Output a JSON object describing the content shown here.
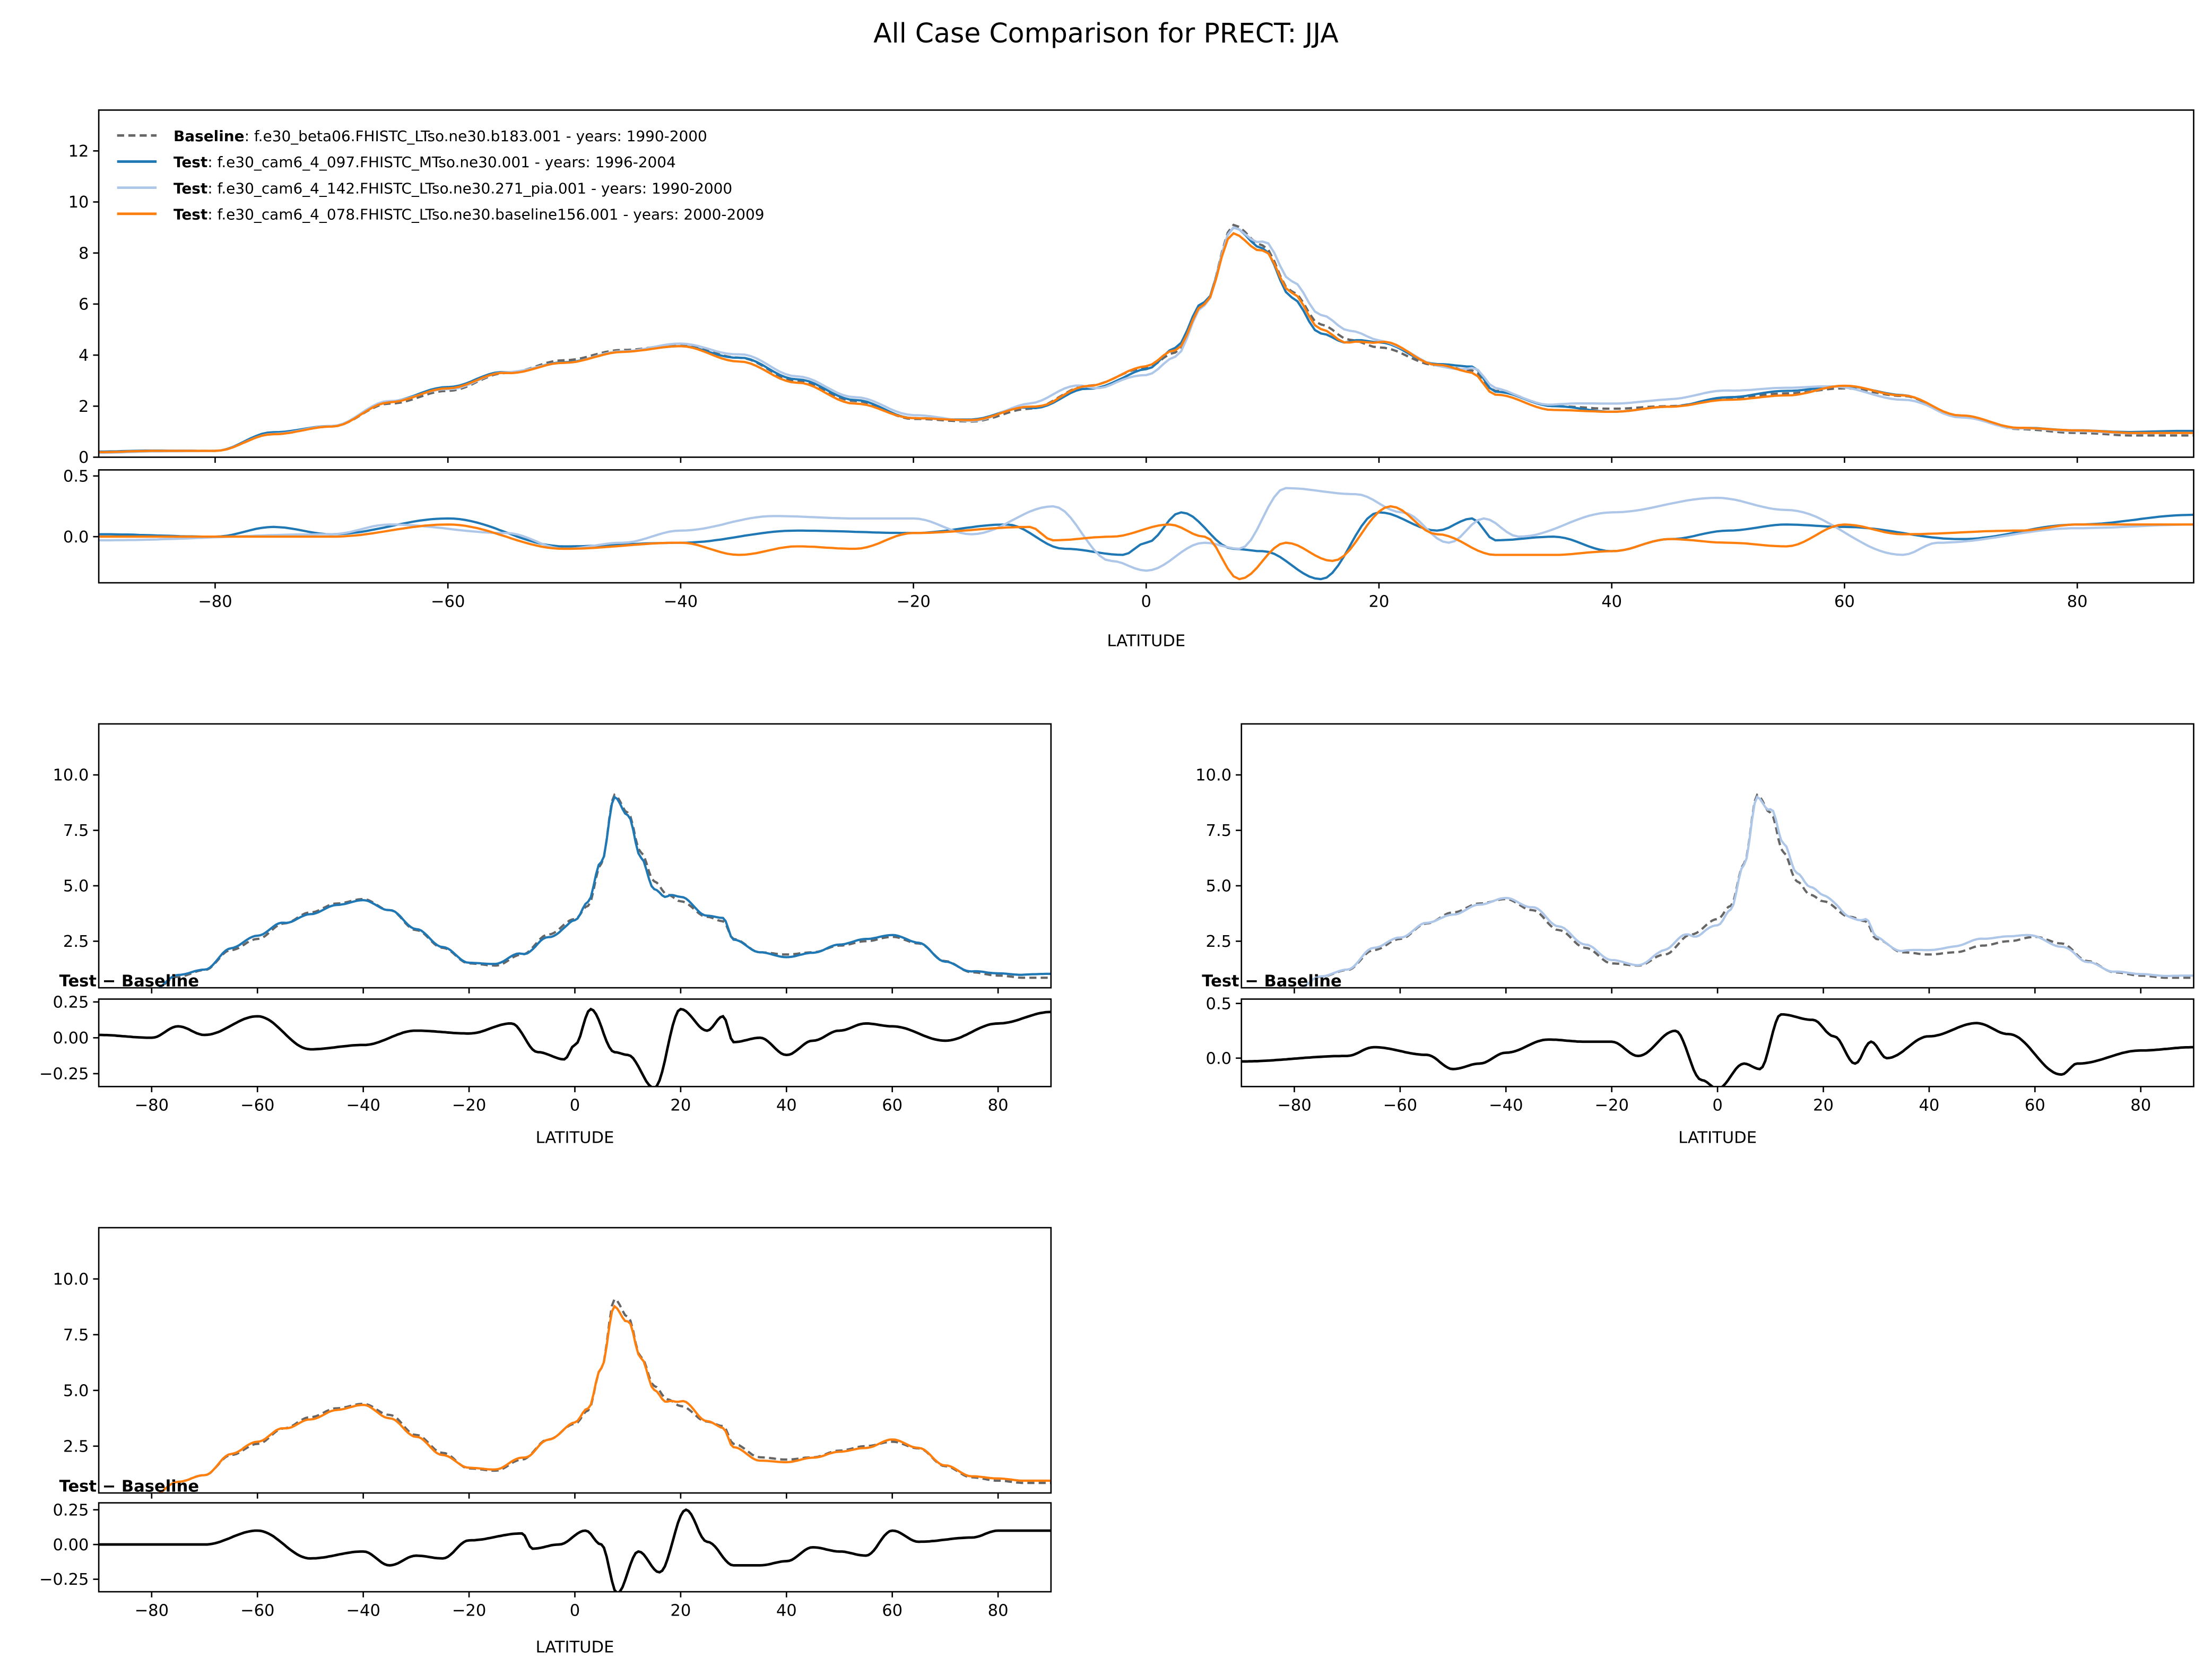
{
  "chart_data": {
    "type": "line",
    "title": "All Case Comparison for PRECT: JJA",
    "xlabel": "LATITUDE",
    "xlim": [
      -90,
      90
    ],
    "xticks": [
      -80,
      -60,
      -40,
      -20,
      0,
      20,
      40,
      60,
      80
    ],
    "diff_label": "Test − Baseline",
    "baseline": {
      "label_bold": "Baseline",
      "label": ": f.e30_beta06.FHISTC_LTso.ne30.b183.001 - years: 1990-2000",
      "color": "#666666",
      "lat": [
        -90,
        -85,
        -80,
        -75,
        -70,
        -65,
        -60,
        -55,
        -50,
        -45,
        -40,
        -35,
        -30,
        -25,
        -20,
        -15,
        -10,
        -5,
        0,
        2.5,
        5,
        7.5,
        10,
        12.5,
        15,
        17.5,
        20,
        25,
        28,
        30,
        35,
        40,
        45,
        50,
        55,
        60,
        65,
        70,
        75,
        80,
        85,
        90
      ],
      "values": [
        0.2,
        0.25,
        0.25,
        0.9,
        1.2,
        2.1,
        2.6,
        3.3,
        3.8,
        4.2,
        4.4,
        3.9,
        3.0,
        2.2,
        1.5,
        1.4,
        1.9,
        2.8,
        3.5,
        4.1,
        6.0,
        9.1,
        8.3,
        6.5,
        5.2,
        4.6,
        4.3,
        3.6,
        3.4,
        2.6,
        2.0,
        1.9,
        2.0,
        2.3,
        2.5,
        2.7,
        2.4,
        1.6,
        1.1,
        0.95,
        0.85,
        0.85
      ]
    },
    "series": [
      {
        "label_bold": "Test",
        "label": ": f.e30_cam6_4_097.FHISTC_MTso.ne30.001 - years: 1996-2004",
        "color": "#1f77b4",
        "diff_lat": [
          -90,
          -80,
          -75,
          -70,
          -60,
          -50,
          -40,
          -30,
          -20,
          -12,
          -7,
          -2,
          0,
          3,
          7.5,
          10,
          15,
          20,
          25,
          28,
          30,
          35,
          40,
          45,
          50,
          55,
          60,
          70,
          80,
          90
        ],
        "diff": [
          0.02,
          0.0,
          0.08,
          0.02,
          0.15,
          -0.08,
          -0.05,
          0.05,
          0.03,
          0.1,
          -0.1,
          -0.15,
          -0.05,
          0.2,
          -0.1,
          -0.12,
          -0.35,
          0.2,
          0.05,
          0.15,
          -0.03,
          0.0,
          -0.12,
          -0.02,
          0.05,
          0.1,
          0.08,
          -0.02,
          0.1,
          0.18
        ],
        "ylim": [
          0.4,
          12.3
        ],
        "yticks": [
          2.5,
          5.0,
          7.5,
          10.0
        ],
        "diff_ylim": [
          -0.34,
          0.27
        ],
        "diff_yticks": [
          -0.25,
          0.0,
          0.25
        ]
      },
      {
        "label_bold": "Test",
        "label": ": f.e30_cam6_4_142.FHISTC_LTso.ne30.271_pia.001 - years: 1990-2000",
        "color": "#aec7e8",
        "diff_lat": [
          -90,
          -70,
          -65,
          -55,
          -50,
          -45,
          -40,
          -32,
          -25,
          -20,
          -15,
          -8,
          -3,
          0,
          5,
          8,
          12,
          18,
          22,
          26,
          29,
          32,
          40,
          49,
          55,
          65,
          68,
          80,
          90
        ],
        "diff": [
          -0.03,
          0.02,
          0.1,
          0.03,
          -0.1,
          -0.05,
          0.05,
          0.17,
          0.15,
          0.15,
          0.02,
          0.25,
          -0.2,
          -0.28,
          -0.05,
          -0.1,
          0.4,
          0.35,
          0.2,
          -0.05,
          0.15,
          0.0,
          0.2,
          0.32,
          0.22,
          -0.15,
          -0.05,
          0.07,
          0.1
        ],
        "ylim": [
          0.4,
          12.3
        ],
        "yticks": [
          2.5,
          5.0,
          7.5,
          10.0
        ],
        "diff_ylim": [
          -0.26,
          0.54
        ],
        "diff_yticks": [
          0.0,
          0.5
        ]
      },
      {
        "label_bold": "Test",
        "label": ": f.e30_cam6_4_078.FHISTC_LTso.ne30.baseline156.001 - years: 2000-2009",
        "color": "#ff7f0e",
        "diff_lat": [
          -90,
          -70,
          -60,
          -50,
          -40,
          -35,
          -30,
          -25,
          -20,
          -10,
          -8,
          -3,
          2,
          5,
          8,
          12,
          16,
          21,
          25,
          30,
          35,
          40,
          45,
          50,
          55,
          60,
          65,
          75,
          80,
          90
        ],
        "diff": [
          0,
          0.0,
          0.1,
          -0.1,
          -0.05,
          -0.15,
          -0.08,
          -0.1,
          0.03,
          0.08,
          -0.03,
          0.0,
          0.1,
          0.0,
          -0.35,
          -0.05,
          -0.2,
          0.25,
          0.02,
          -0.15,
          -0.15,
          -0.12,
          -0.02,
          -0.05,
          -0.08,
          0.1,
          0.02,
          0.05,
          0.1,
          0.1
        ],
        "ylim": [
          0.4,
          12.3
        ],
        "yticks": [
          2.5,
          5.0,
          7.5,
          10.0
        ],
        "diff_ylim": [
          -0.34,
          0.3
        ],
        "diff_yticks": [
          -0.25,
          0.0,
          0.25
        ]
      }
    ],
    "main": {
      "ylim": [
        0,
        13.6
      ],
      "yticks": [
        0,
        2,
        4,
        6,
        8,
        10,
        12
      ],
      "diff_ylim": [
        -0.38,
        0.55
      ],
      "diff_yticks": [
        0.0,
        0.5
      ],
      "legend": "top-left"
    }
  }
}
